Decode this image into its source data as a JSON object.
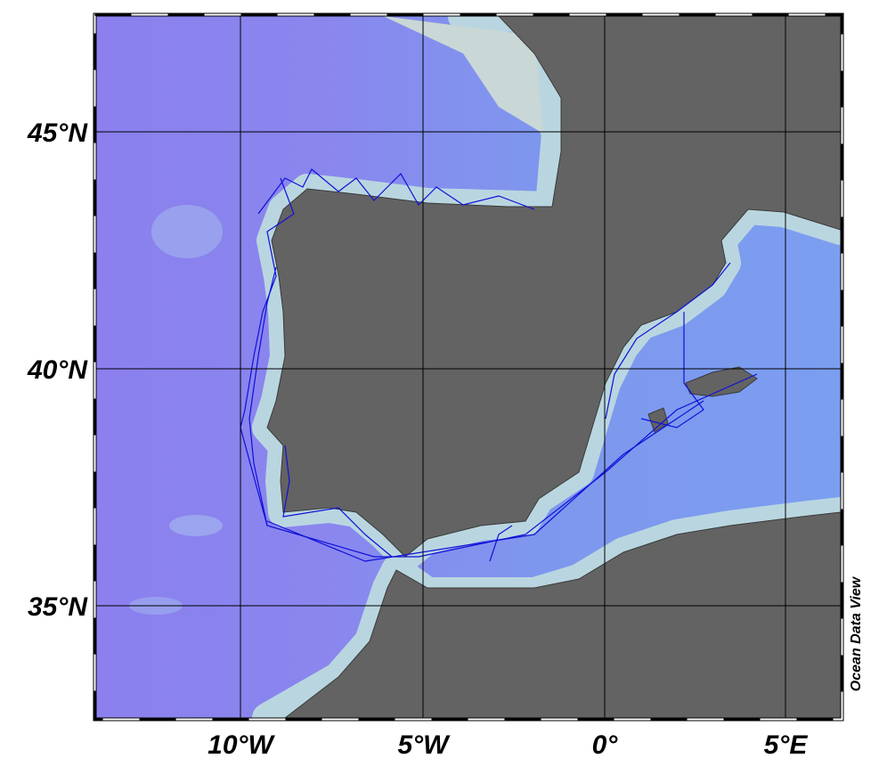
{
  "map": {
    "lat_labels": [
      "45°N",
      "40°N",
      "35°N"
    ],
    "lon_labels": [
      "10°W",
      "5°W",
      "0°",
      "5°E"
    ],
    "credit": "Ocean Data View"
  }
}
